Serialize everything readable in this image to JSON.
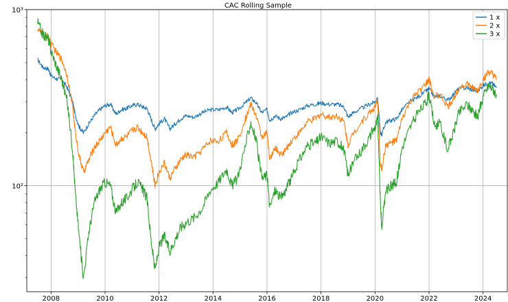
{
  "chart_data": {
    "type": "line",
    "title": "CAC Rolling Sample",
    "xlabel": "",
    "ylabel": "",
    "yscale": "log",
    "xlim": [
      2007.1,
      2024.9
    ],
    "ylim": [
      25,
      1000
    ],
    "x_ticks": [
      2008,
      2010,
      2012,
      2014,
      2016,
      2018,
      2020,
      2022,
      2024
    ],
    "x_tick_labels": [
      "2008",
      "2010",
      "2012",
      "2014",
      "2016",
      "2018",
      "2020",
      "2022",
      "2024"
    ],
    "y_ticks": [
      100,
      1000
    ],
    "y_tick_labels": [
      "10²",
      "10³"
    ],
    "grid": true,
    "legend_position": "top-right",
    "series": [
      {
        "name": "1 x",
        "color": "#1f77b4",
        "points": [
          [
            2007.5,
            520
          ],
          [
            2007.7,
            470
          ],
          [
            2007.9,
            460
          ],
          [
            2008.0,
            420
          ],
          [
            2008.2,
            405
          ],
          [
            2008.4,
            400
          ],
          [
            2008.6,
            360
          ],
          [
            2008.8,
            300
          ],
          [
            2008.9,
            250
          ],
          [
            2009.05,
            215
          ],
          [
            2009.2,
            200
          ],
          [
            2009.4,
            225
          ],
          [
            2009.6,
            250
          ],
          [
            2009.8,
            270
          ],
          [
            2010.0,
            285
          ],
          [
            2010.2,
            290
          ],
          [
            2010.4,
            255
          ],
          [
            2010.6,
            270
          ],
          [
            2010.8,
            275
          ],
          [
            2011.0,
            285
          ],
          [
            2011.2,
            290
          ],
          [
            2011.4,
            280
          ],
          [
            2011.55,
            275
          ],
          [
            2011.7,
            240
          ],
          [
            2011.85,
            210
          ],
          [
            2012.0,
            225
          ],
          [
            2012.2,
            240
          ],
          [
            2012.4,
            210
          ],
          [
            2012.6,
            225
          ],
          [
            2012.8,
            240
          ],
          [
            2013.0,
            250
          ],
          [
            2013.3,
            245
          ],
          [
            2013.6,
            260
          ],
          [
            2013.9,
            270
          ],
          [
            2014.2,
            270
          ],
          [
            2014.5,
            280
          ],
          [
            2014.7,
            260
          ],
          [
            2014.9,
            270
          ],
          [
            2015.2,
            295
          ],
          [
            2015.4,
            315
          ],
          [
            2015.6,
            295
          ],
          [
            2015.8,
            260
          ],
          [
            2016.0,
            270
          ],
          [
            2016.1,
            235
          ],
          [
            2016.3,
            250
          ],
          [
            2016.5,
            240
          ],
          [
            2016.7,
            245
          ],
          [
            2016.9,
            260
          ],
          [
            2017.2,
            270
          ],
          [
            2017.5,
            285
          ],
          [
            2017.8,
            290
          ],
          [
            2018.0,
            295
          ],
          [
            2018.3,
            290
          ],
          [
            2018.6,
            290
          ],
          [
            2018.85,
            280
          ],
          [
            2019.0,
            245
          ],
          [
            2019.2,
            260
          ],
          [
            2019.5,
            275
          ],
          [
            2019.8,
            290
          ],
          [
            2020.0,
            300
          ],
          [
            2020.1,
            310
          ],
          [
            2020.2,
            200
          ],
          [
            2020.25,
            195
          ],
          [
            2020.4,
            230
          ],
          [
            2020.6,
            235
          ],
          [
            2020.8,
            240
          ],
          [
            2021.0,
            270
          ],
          [
            2021.3,
            300
          ],
          [
            2021.6,
            320
          ],
          [
            2021.9,
            345
          ],
          [
            2022.0,
            355
          ],
          [
            2022.2,
            320
          ],
          [
            2022.4,
            325
          ],
          [
            2022.7,
            305
          ],
          [
            2022.9,
            330
          ],
          [
            2023.1,
            355
          ],
          [
            2023.4,
            360
          ],
          [
            2023.6,
            350
          ],
          [
            2023.8,
            345
          ],
          [
            2024.0,
            370
          ],
          [
            2024.2,
            385
          ],
          [
            2024.35,
            380
          ],
          [
            2024.5,
            360
          ]
        ]
      },
      {
        "name": "2 x",
        "color": "#ff7f0e",
        "points": [
          [
            2007.5,
            780
          ],
          [
            2007.7,
            720
          ],
          [
            2007.9,
            700
          ],
          [
            2008.0,
            640
          ],
          [
            2008.2,
            570
          ],
          [
            2008.4,
            520
          ],
          [
            2008.6,
            420
          ],
          [
            2008.8,
            280
          ],
          [
            2008.9,
            200
          ],
          [
            2009.05,
            145
          ],
          [
            2009.2,
            120
          ],
          [
            2009.4,
            140
          ],
          [
            2009.6,
            165
          ],
          [
            2009.8,
            180
          ],
          [
            2010.0,
            200
          ],
          [
            2010.2,
            215
          ],
          [
            2010.4,
            170
          ],
          [
            2010.6,
            185
          ],
          [
            2010.8,
            190
          ],
          [
            2011.0,
            205
          ],
          [
            2011.2,
            215
          ],
          [
            2011.4,
            200
          ],
          [
            2011.55,
            190
          ],
          [
            2011.7,
            140
          ],
          [
            2011.85,
            100
          ],
          [
            2012.0,
            120
          ],
          [
            2012.2,
            135
          ],
          [
            2012.4,
            110
          ],
          [
            2012.6,
            125
          ],
          [
            2012.8,
            140
          ],
          [
            2013.0,
            150
          ],
          [
            2013.3,
            145
          ],
          [
            2013.6,
            160
          ],
          [
            2013.9,
            180
          ],
          [
            2014.2,
            180
          ],
          [
            2014.5,
            200
          ],
          [
            2014.7,
            170
          ],
          [
            2014.9,
            180
          ],
          [
            2015.2,
            240
          ],
          [
            2015.4,
            290
          ],
          [
            2015.6,
            250
          ],
          [
            2015.8,
            190
          ],
          [
            2016.0,
            200
          ],
          [
            2016.1,
            140
          ],
          [
            2016.3,
            165
          ],
          [
            2016.5,
            150
          ],
          [
            2016.7,
            160
          ],
          [
            2016.9,
            180
          ],
          [
            2017.2,
            200
          ],
          [
            2017.5,
            230
          ],
          [
            2017.8,
            240
          ],
          [
            2018.0,
            255
          ],
          [
            2018.3,
            245
          ],
          [
            2018.6,
            250
          ],
          [
            2018.85,
            230
          ],
          [
            2019.0,
            170
          ],
          [
            2019.2,
            200
          ],
          [
            2019.5,
            230
          ],
          [
            2019.8,
            260
          ],
          [
            2020.0,
            280
          ],
          [
            2020.1,
            300
          ],
          [
            2020.2,
            130
          ],
          [
            2020.25,
            125
          ],
          [
            2020.4,
            170
          ],
          [
            2020.6,
            175
          ],
          [
            2020.8,
            180
          ],
          [
            2021.0,
            240
          ],
          [
            2021.3,
            300
          ],
          [
            2021.6,
            340
          ],
          [
            2021.9,
            380
          ],
          [
            2022.0,
            400
          ],
          [
            2022.2,
            320
          ],
          [
            2022.4,
            330
          ],
          [
            2022.7,
            280
          ],
          [
            2022.9,
            310
          ],
          [
            2023.1,
            360
          ],
          [
            2023.4,
            380
          ],
          [
            2023.6,
            360
          ],
          [
            2023.8,
            345
          ],
          [
            2024.0,
            400
          ],
          [
            2024.2,
            440
          ],
          [
            2024.35,
            430
          ],
          [
            2024.5,
            400
          ]
        ]
      },
      {
        "name": "3 x",
        "color": "#2ca02c",
        "points": [
          [
            2007.5,
            850
          ],
          [
            2007.7,
            720
          ],
          [
            2007.9,
            680
          ],
          [
            2008.0,
            580
          ],
          [
            2008.2,
            480
          ],
          [
            2008.4,
            400
          ],
          [
            2008.6,
            300
          ],
          [
            2008.8,
            160
          ],
          [
            2008.9,
            90
          ],
          [
            2009.05,
            50
          ],
          [
            2009.2,
            30
          ],
          [
            2009.4,
            55
          ],
          [
            2009.6,
            80
          ],
          [
            2009.8,
            95
          ],
          [
            2010.0,
            105
          ],
          [
            2010.2,
            100
          ],
          [
            2010.4,
            70
          ],
          [
            2010.6,
            80
          ],
          [
            2010.8,
            85
          ],
          [
            2011.0,
            95
          ],
          [
            2011.2,
            105
          ],
          [
            2011.4,
            95
          ],
          [
            2011.55,
            85
          ],
          [
            2011.7,
            50
          ],
          [
            2011.85,
            33
          ],
          [
            2012.0,
            45
          ],
          [
            2012.2,
            52
          ],
          [
            2012.4,
            42
          ],
          [
            2012.6,
            50
          ],
          [
            2012.8,
            58
          ],
          [
            2013.0,
            62
          ],
          [
            2013.3,
            66
          ],
          [
            2013.6,
            75
          ],
          [
            2013.9,
            95
          ],
          [
            2014.2,
            105
          ],
          [
            2014.5,
            125
          ],
          [
            2014.7,
            100
          ],
          [
            2014.9,
            110
          ],
          [
            2015.2,
            170
          ],
          [
            2015.4,
            230
          ],
          [
            2015.6,
            180
          ],
          [
            2015.8,
            110
          ],
          [
            2016.0,
            115
          ],
          [
            2016.1,
            75
          ],
          [
            2016.3,
            95
          ],
          [
            2016.5,
            85
          ],
          [
            2016.7,
            95
          ],
          [
            2016.9,
            110
          ],
          [
            2017.2,
            140
          ],
          [
            2017.5,
            170
          ],
          [
            2017.8,
            175
          ],
          [
            2018.0,
            190
          ],
          [
            2018.3,
            175
          ],
          [
            2018.6,
            180
          ],
          [
            2018.85,
            160
          ],
          [
            2019.0,
            115
          ],
          [
            2019.2,
            135
          ],
          [
            2019.5,
            160
          ],
          [
            2019.8,
            190
          ],
          [
            2020.0,
            215
          ],
          [
            2020.1,
            240
          ],
          [
            2020.2,
            80
          ],
          [
            2020.25,
            58
          ],
          [
            2020.4,
            95
          ],
          [
            2020.6,
            100
          ],
          [
            2020.8,
            105
          ],
          [
            2021.0,
            165
          ],
          [
            2021.3,
            215
          ],
          [
            2021.6,
            260
          ],
          [
            2021.9,
            300
          ],
          [
            2022.0,
            330
          ],
          [
            2022.2,
            220
          ],
          [
            2022.4,
            225
          ],
          [
            2022.7,
            160
          ],
          [
            2022.9,
            200
          ],
          [
            2023.1,
            260
          ],
          [
            2023.4,
            290
          ],
          [
            2023.6,
            270
          ],
          [
            2023.8,
            245
          ],
          [
            2024.0,
            320
          ],
          [
            2024.2,
            370
          ],
          [
            2024.35,
            360
          ],
          [
            2024.5,
            330
          ]
        ]
      }
    ]
  }
}
